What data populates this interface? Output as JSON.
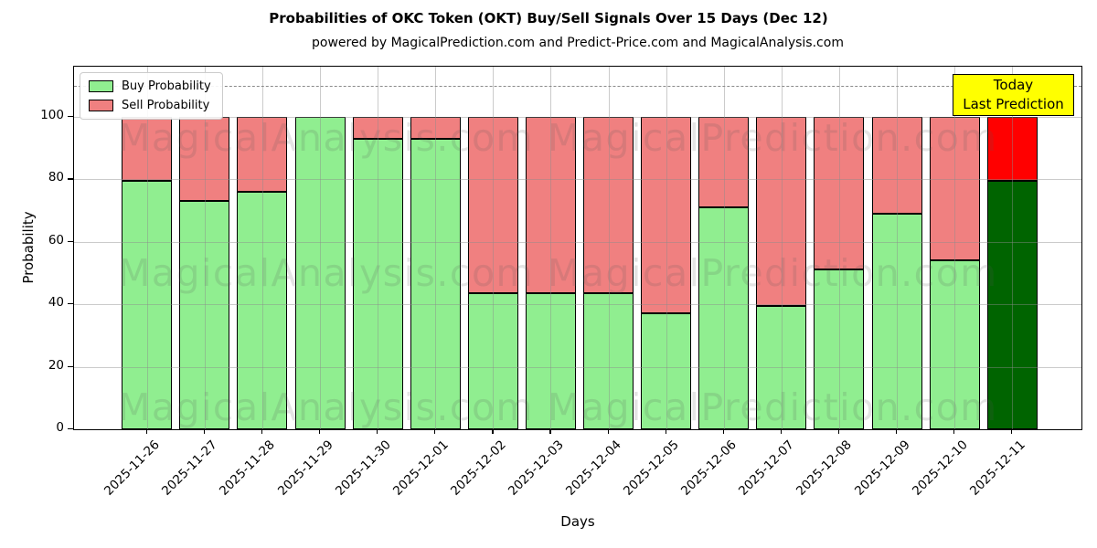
{
  "title": "Probabilities of OKC Token (OKT) Buy/Sell Signals Over 15 Days (Dec 12)",
  "subtitle": "powered by MagicalPrediction.com and Predict-Price.com and MagicalAnalysis.com",
  "legend": {
    "items": [
      {
        "label": "Buy Probability",
        "color": "#90EE90"
      },
      {
        "label": "Sell Probability",
        "color": "#F08080"
      }
    ]
  },
  "annotation_box": {
    "lines": [
      "Today",
      "Last Prediction"
    ],
    "bg_color": "#FFFF00",
    "border_color": "#000000"
  },
  "watermark": {
    "left_text": "MagicalAnalysis.com",
    "right_text": "MagicalPrediction.com",
    "rows": 3
  },
  "chart_data": {
    "type": "bar",
    "stacked": true,
    "title": "Probabilities of OKC Token (OKT) Buy/Sell Signals Over 15 Days (Dec 12)",
    "xlabel": "Days",
    "ylabel": "Probability",
    "categories": [
      "2025-11-26",
      "2025-11-27",
      "2025-11-28",
      "2025-11-29",
      "2025-11-30",
      "2025-12-01",
      "2025-12-02",
      "2025-12-03",
      "2025-12-04",
      "2025-12-05",
      "2025-12-06",
      "2025-12-07",
      "2025-12-08",
      "2025-12-09",
      "2025-12-10",
      "2025-12-11"
    ],
    "series": [
      {
        "name": "Buy Probability",
        "color": "#90EE90",
        "values": [
          79.5,
          73,
          76,
          100,
          93,
          93,
          43.5,
          43.5,
          43.5,
          37,
          71,
          39.5,
          51,
          69,
          54,
          79.5
        ]
      },
      {
        "name": "Sell Probability",
        "color": "#F08080",
        "values": [
          20.5,
          27,
          24,
          0,
          7,
          7,
          56.5,
          56.5,
          56.5,
          63,
          29,
          60.5,
          49,
          31,
          46,
          20.5
        ]
      }
    ],
    "today_index": 15,
    "today_colors": {
      "buy": "#006400",
      "sell": "#FF0000"
    },
    "bar_edge_color": "#000000",
    "yticks": [
      0,
      20,
      40,
      60,
      80,
      100
    ],
    "ylim": [
      0,
      116
    ],
    "reference_line_y": 110,
    "grid": true,
    "legend_position": "upper left"
  }
}
